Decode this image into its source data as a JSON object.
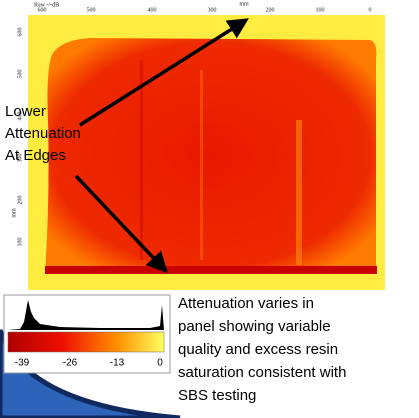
{
  "image": {
    "scale_label": "Raw -/-dB",
    "top_axis": {
      "unit": "mm",
      "ticks": [
        600,
        500,
        400,
        300,
        200,
        100,
        0
      ]
    },
    "left_axis": {
      "unit": "mm",
      "ticks": [
        600,
        500,
        400,
        300,
        200,
        100
      ]
    }
  },
  "annotation": {
    "lines": [
      "Lower",
      "Attenuation",
      "At Edges"
    ]
  },
  "colorbar": {
    "ticks": [
      -39,
      -26,
      -13,
      0
    ]
  },
  "caption": {
    "lines": [
      "Attenuation varies in",
      "panel showing variable",
      "quality and excess resin",
      "saturation consistent with",
      "SBS testing"
    ]
  }
}
